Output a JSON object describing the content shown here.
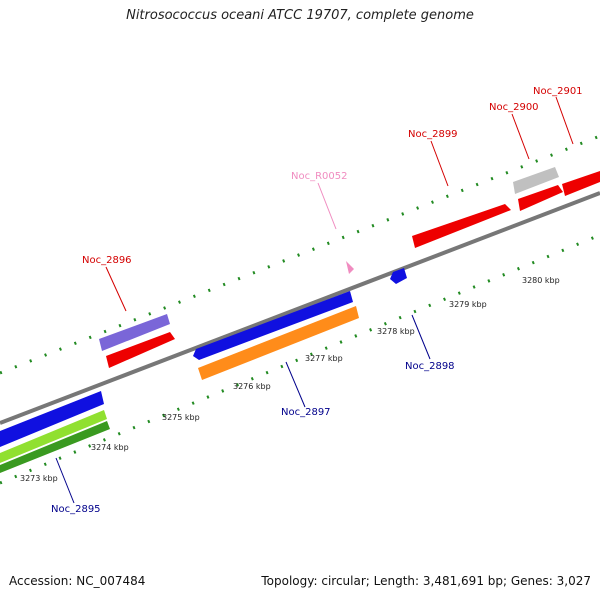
{
  "title": "Nitrosococcus oceani ATCC 19707, complete genome",
  "footer": {
    "accession": "Accession: NC_007484",
    "summary": "Topology: circular; Length: 3,481,691 bp; Genes: 3,027"
  },
  "scale_labels": [
    {
      "text": "3273 kbp",
      "kbp": 3273
    },
    {
      "text": "3274 kbp",
      "kbp": 3274
    },
    {
      "text": "3275 kbp",
      "kbp": 3275
    },
    {
      "text": "3276 kbp",
      "kbp": 3276
    },
    {
      "text": "3277 kbp",
      "kbp": 3277
    },
    {
      "text": "3278 kbp",
      "kbp": 3278
    },
    {
      "text": "3279 kbp",
      "kbp": 3279
    },
    {
      "text": "3280 kbp",
      "kbp": 3280
    }
  ],
  "genes": [
    {
      "label": "Noc_2896",
      "strand": "forward",
      "color": "#d40000"
    },
    {
      "label": "Noc_R0052",
      "strand": "forward",
      "color": "#f08cc0"
    },
    {
      "label": "Noc_2899",
      "strand": "forward",
      "color": "#d40000"
    },
    {
      "label": "Noc_2900",
      "strand": "forward",
      "color": "#d40000"
    },
    {
      "label": "Noc_2901",
      "strand": "forward",
      "color": "#d40000"
    },
    {
      "label": "Noc_2895",
      "strand": "reverse",
      "color": "#00008b"
    },
    {
      "label": "Noc_2897",
      "strand": "reverse",
      "color": "#00008b"
    },
    {
      "label": "Noc_2898",
      "strand": "reverse",
      "color": "#00008b"
    }
  ],
  "colors": {
    "forward_cds": "#ee0000",
    "reverse_cds": "#1010e0",
    "rna": "#f08cc0",
    "cog_purple": "#7a66d8",
    "cog_orange": "#ff8c1a",
    "cog_green": "#3a9a20",
    "cog_lightgreen": "#90e030",
    "pseudo_grey": "#c0c0c0",
    "backbone": "#777777",
    "ticks": "#228b22"
  }
}
